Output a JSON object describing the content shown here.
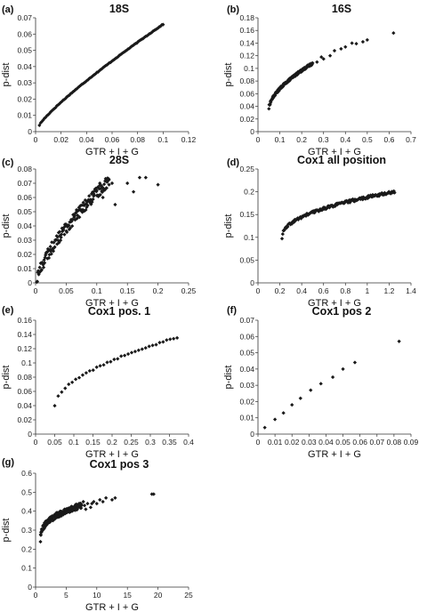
{
  "figure": {
    "background": "#ffffff",
    "marker_color": "#1a1a1a",
    "axis_color": "#333333"
  },
  "chart_data": [
    {
      "panel": "(a)",
      "type": "scatter",
      "title": "18S",
      "xlabel": "GTR + I + G",
      "ylabel": "p-dist",
      "xlim": [
        0,
        0.12
      ],
      "ylim": [
        0,
        0.07
      ],
      "xticks": [
        "0",
        "0.02",
        "0.04",
        "0.06",
        "0.08",
        "0.1",
        "0.12"
      ],
      "yticks": [
        "0",
        "0.01",
        "0.02",
        "0.03",
        "0.04",
        "0.05",
        "0.06",
        "0.07"
      ],
      "curve": {
        "x0": 0.003,
        "x1": 0.1,
        "p": 0.85,
        "y0": 0.004,
        "y1": 0.066,
        "n": 100,
        "jitter": 0.0002
      },
      "points": [],
      "grid": false
    },
    {
      "panel": "(b)",
      "type": "scatter",
      "title": "16S",
      "xlabel": "GTR + I + G",
      "ylabel": "p-dist",
      "xlim": [
        0,
        0.7
      ],
      "ylim": [
        0,
        0.18
      ],
      "xticks": [
        "0",
        "0.1",
        "0.2",
        "0.3",
        "0.4",
        "0.5",
        "0.6",
        "0.7"
      ],
      "yticks": [
        "0",
        "0.02",
        "0.04",
        "0.06",
        "0.08",
        "0.1",
        "0.12",
        "0.14",
        "0.16",
        "0.18"
      ],
      "curve": {
        "x0": 0.05,
        "x1": 0.25,
        "p": 0.6,
        "y0": 0.037,
        "y1": 0.108,
        "n": 140,
        "jitter": 0.002
      },
      "points": [
        [
          0.27,
          0.11
        ],
        [
          0.29,
          0.118
        ],
        [
          0.3,
          0.115
        ],
        [
          0.33,
          0.12
        ],
        [
          0.35,
          0.128
        ],
        [
          0.38,
          0.131
        ],
        [
          0.4,
          0.134
        ],
        [
          0.43,
          0.14
        ],
        [
          0.45,
          0.139
        ],
        [
          0.48,
          0.142
        ],
        [
          0.5,
          0.145
        ],
        [
          0.62,
          0.156
        ]
      ],
      "grid": false
    },
    {
      "panel": "(c)",
      "type": "scatter",
      "title": "28S",
      "xlabel": "GTR + I + G",
      "ylabel": "p-dist",
      "xlim": [
        0,
        0.25
      ],
      "ylim": [
        0,
        0.08
      ],
      "xticks": [
        "0",
        "0.05",
        "0.1",
        "0.15",
        "0.2",
        "0.25"
      ],
      "yticks": [
        "0",
        "0.01",
        "0.02",
        "0.03",
        "0.04",
        "0.05",
        "0.06",
        "0.07",
        "0.08"
      ],
      "curve": {
        "x0": 0.002,
        "x1": 0.12,
        "p": 0.72,
        "y0": 0.002,
        "y1": 0.072,
        "n": 150,
        "jitter": 0.004
      },
      "points": [
        [
          0.1,
          0.065
        ],
        [
          0.105,
          0.07
        ],
        [
          0.11,
          0.06
        ],
        [
          0.115,
          0.072
        ],
        [
          0.12,
          0.069
        ],
        [
          0.125,
          0.07
        ],
        [
          0.13,
          0.055
        ],
        [
          0.15,
          0.07
        ],
        [
          0.16,
          0.064
        ],
        [
          0.17,
          0.074
        ],
        [
          0.18,
          0.074
        ],
        [
          0.2,
          0.069
        ],
        [
          0.09,
          0.058
        ],
        [
          0.095,
          0.061
        ]
      ],
      "grid": false
    },
    {
      "panel": "(d)",
      "type": "scatter",
      "title": "Cox1 all position",
      "xlabel": "GTR + I + G",
      "ylabel": "p-dist",
      "xlim": [
        0,
        1.4
      ],
      "ylim": [
        0,
        0.25
      ],
      "xticks": [
        "0",
        "0.2",
        "0.4",
        "0.6",
        "0.8",
        "1",
        "1.2",
        "1.4"
      ],
      "yticks": [
        "0",
        "0.05",
        "0.1",
        "0.15",
        "0.2",
        "0.25"
      ],
      "curve": {
        "x0": 0.22,
        "x1": 1.25,
        "p": 0.45,
        "y0": 0.098,
        "y1": 0.2,
        "n": 160,
        "jitter": 0.003
      },
      "points": [],
      "grid": false
    },
    {
      "panel": "(e)",
      "type": "scatter",
      "title": "Cox1 pos. 1",
      "xlabel": "GTR + I + G",
      "ylabel": "p-dist",
      "xlim": [
        0,
        0.4
      ],
      "ylim": [
        0,
        0.16
      ],
      "xticks": [
        "0",
        "0.05",
        "0.1",
        "0.15",
        "0.2",
        "0.25",
        "0.3",
        "0.35",
        "0.4"
      ],
      "yticks": [
        "0",
        "0.02",
        "0.04",
        "0.06",
        "0.08",
        "0.1",
        "0.12",
        "0.14",
        "0.16"
      ],
      "curve": {
        "x0": 0.05,
        "x1": 0.37,
        "p": 0.55,
        "y0": 0.04,
        "y1": 0.136,
        "n": 36,
        "jitter": 0.001
      },
      "points": [],
      "grid": false
    },
    {
      "panel": "(f)",
      "type": "scatter",
      "title": "Cox1 pos 2",
      "xlabel": "GTR + I + G",
      "ylabel": "p-dist",
      "xlim": [
        0,
        0.09
      ],
      "ylim": [
        0,
        0.07
      ],
      "xticks": [
        "0",
        "0.01",
        "0.02",
        "0.03",
        "0.04",
        "0.05",
        "0.06",
        "0.07",
        "0.08",
        "0.09"
      ],
      "yticks": [
        "0",
        "0.01",
        "0.02",
        "0.03",
        "0.04",
        "0.05",
        "0.06",
        "0.07"
      ],
      "curve": null,
      "points": [
        [
          0.004,
          0.004
        ],
        [
          0.01,
          0.009
        ],
        [
          0.015,
          0.013
        ],
        [
          0.02,
          0.018
        ],
        [
          0.025,
          0.022
        ],
        [
          0.031,
          0.027
        ],
        [
          0.037,
          0.031
        ],
        [
          0.044,
          0.035
        ],
        [
          0.05,
          0.04
        ],
        [
          0.057,
          0.044
        ],
        [
          0.083,
          0.057
        ]
      ],
      "grid": false
    },
    {
      "panel": "(g)",
      "type": "scatter",
      "title": "Cox1 pos 3",
      "xlabel": "GTR + I + G",
      "ylabel": "p-dist",
      "xlim": [
        0,
        25
      ],
      "ylim": [
        0,
        0.6
      ],
      "xticks": [
        "0",
        "5",
        "10",
        "15",
        "20",
        "25"
      ],
      "yticks": [
        "0",
        "0.1",
        "0.2",
        "0.3",
        "0.4",
        "0.5",
        "0.6"
      ],
      "curve": {
        "x0": 0.8,
        "x1": 7.5,
        "p": 0.35,
        "y0": 0.24,
        "y1": 0.43,
        "n": 220,
        "jitter": 0.015
      },
      "points": [
        [
          8,
          0.43
        ],
        [
          8.5,
          0.44
        ],
        [
          9,
          0.42
        ],
        [
          9.5,
          0.45
        ],
        [
          10,
          0.44
        ],
        [
          10.5,
          0.46
        ],
        [
          11,
          0.45
        ],
        [
          11.5,
          0.47
        ],
        [
          12.5,
          0.46
        ],
        [
          13,
          0.47
        ],
        [
          19,
          0.49
        ],
        [
          19.3,
          0.49
        ],
        [
          7.8,
          0.45
        ],
        [
          8.2,
          0.41
        ],
        [
          9.2,
          0.44
        ]
      ],
      "grid": false
    }
  ]
}
